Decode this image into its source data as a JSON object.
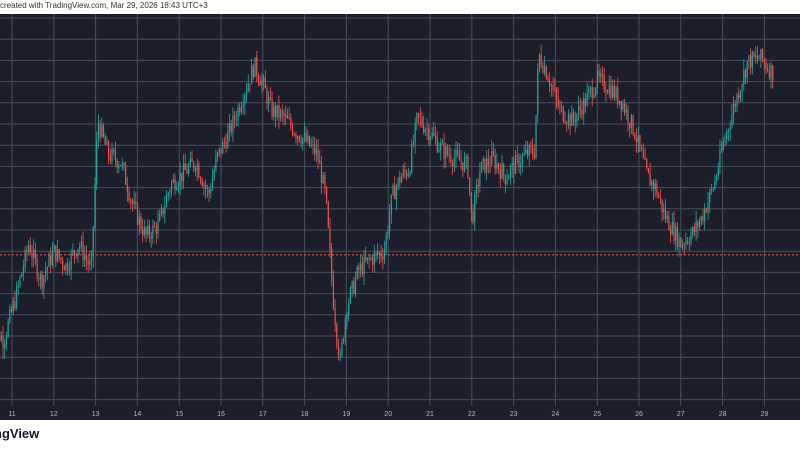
{
  "header": {
    "text": "created with TradingView.com, Mar 29, 2026 18:43 UTC+3"
  },
  "footer": {
    "brand": "ngView"
  },
  "colors": {
    "background": "#1c1f2b",
    "grid": "#4a4e5a",
    "up": "#26a69a",
    "down": "#ef5350",
    "axis_text": "#b2b5be",
    "price_line": "#ef5350"
  },
  "chart_data": {
    "type": "candlestick",
    "title": "",
    "xlabel": "",
    "ylabel": "",
    "x_tick_labels": [
      "11",
      "12",
      "13",
      "14",
      "15",
      "16",
      "17",
      "18",
      "19",
      "20",
      "21",
      "22",
      "23",
      "24",
      "25",
      "26",
      "27",
      "28",
      "29"
    ],
    "ylim": [
      0,
      100
    ],
    "grid": true,
    "last_price_line": 39,
    "anchors": [
      [
        10.5,
        20
      ],
      [
        10.8,
        16
      ],
      [
        11.1,
        28
      ],
      [
        11.4,
        42
      ],
      [
        11.7,
        32
      ],
      [
        12.0,
        40
      ],
      [
        12.3,
        36
      ],
      [
        12.6,
        42
      ],
      [
        12.9,
        35
      ],
      [
        13.05,
        75
      ],
      [
        13.3,
        66
      ],
      [
        13.6,
        64
      ],
      [
        13.9,
        52
      ],
      [
        14.2,
        44
      ],
      [
        14.5,
        47
      ],
      [
        14.8,
        58
      ],
      [
        15.2,
        62
      ],
      [
        15.4,
        64
      ],
      [
        15.7,
        55
      ],
      [
        15.9,
        65
      ],
      [
        16.2,
        72
      ],
      [
        16.5,
        81
      ],
      [
        16.8,
        90
      ],
      [
        17.0,
        85
      ],
      [
        17.2,
        78
      ],
      [
        17.5,
        76
      ],
      [
        17.8,
        72
      ],
      [
        18.0,
        70
      ],
      [
        18.3,
        66
      ],
      [
        18.5,
        55
      ],
      [
        18.7,
        25
      ],
      [
        18.85,
        10
      ],
      [
        19.0,
        25
      ],
      [
        19.3,
        35
      ],
      [
        19.6,
        38
      ],
      [
        19.9,
        40
      ],
      [
        20.1,
        55
      ],
      [
        20.3,
        60
      ],
      [
        20.5,
        62
      ],
      [
        20.7,
        76
      ],
      [
        21.0,
        72
      ],
      [
        21.3,
        67
      ],
      [
        21.6,
        65
      ],
      [
        21.9,
        63
      ],
      [
        22.0,
        48
      ],
      [
        22.2,
        62
      ],
      [
        22.5,
        65
      ],
      [
        22.8,
        60
      ],
      [
        23.1,
        64
      ],
      [
        23.3,
        66
      ],
      [
        23.5,
        67
      ],
      [
        23.6,
        93
      ],
      [
        23.8,
        88
      ],
      [
        24.1,
        78
      ],
      [
        24.4,
        75
      ],
      [
        24.7,
        80
      ],
      [
        25.0,
        86
      ],
      [
        25.3,
        84
      ],
      [
        25.6,
        80
      ],
      [
        25.9,
        72
      ],
      [
        26.2,
        60
      ],
      [
        26.4,
        57
      ],
      [
        26.6,
        50
      ],
      [
        26.8,
        46
      ],
      [
        27.0,
        42
      ],
      [
        27.3,
        45
      ],
      [
        27.5,
        49
      ],
      [
        27.8,
        58
      ],
      [
        28.0,
        68
      ],
      [
        28.3,
        80
      ],
      [
        28.6,
        91
      ],
      [
        28.9,
        92
      ],
      [
        29.2,
        88
      ]
    ],
    "candle_count": 460
  }
}
